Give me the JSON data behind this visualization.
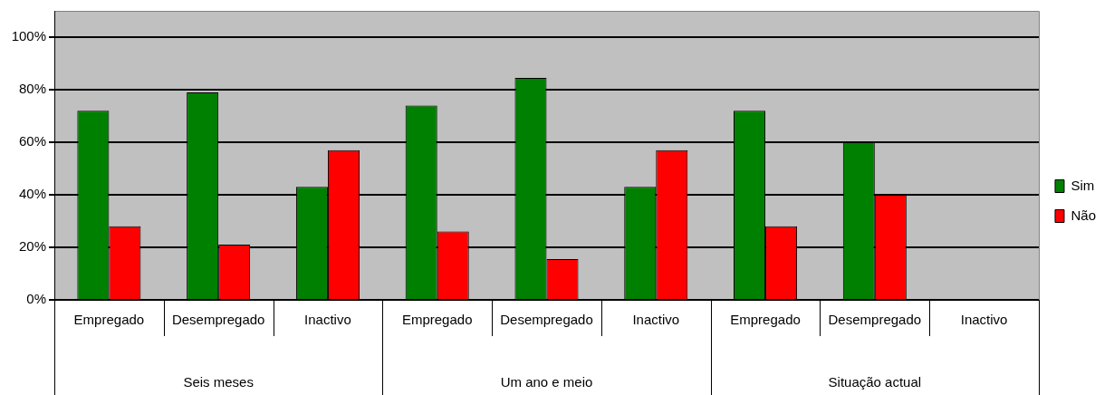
{
  "chart_data": {
    "type": "bar",
    "categories": [
      "Empregado",
      "Desempregado",
      "Inactivo",
      "Empregado",
      "Desempregado",
      "Inactivo",
      "Empregado",
      "Desempregado",
      "Inactivo"
    ],
    "series": [
      {
        "name": "Sim",
        "color": "#008000",
        "values": [
          72,
          79,
          43,
          74,
          84.5,
          43,
          72,
          60,
          null
        ]
      },
      {
        "name": "Não",
        "color": "#ff0000",
        "values": [
          28,
          21,
          57,
          26,
          15.5,
          57,
          28,
          40,
          null
        ]
      }
    ],
    "annotations": [
      "Seis meses",
      "Um ano e meio",
      "Situação actual"
    ],
    "ylim": [
      0,
      110
    ],
    "yticks": [
      {
        "value": 0,
        "label": "0%"
      },
      {
        "value": 20,
        "label": "20%"
      },
      {
        "value": 40,
        "label": "40%"
      },
      {
        "value": 60,
        "label": "60%"
      },
      {
        "value": 80,
        "label": "80%"
      },
      {
        "value": 100,
        "label": "100%"
      }
    ],
    "grid": "y",
    "legend": "right"
  }
}
